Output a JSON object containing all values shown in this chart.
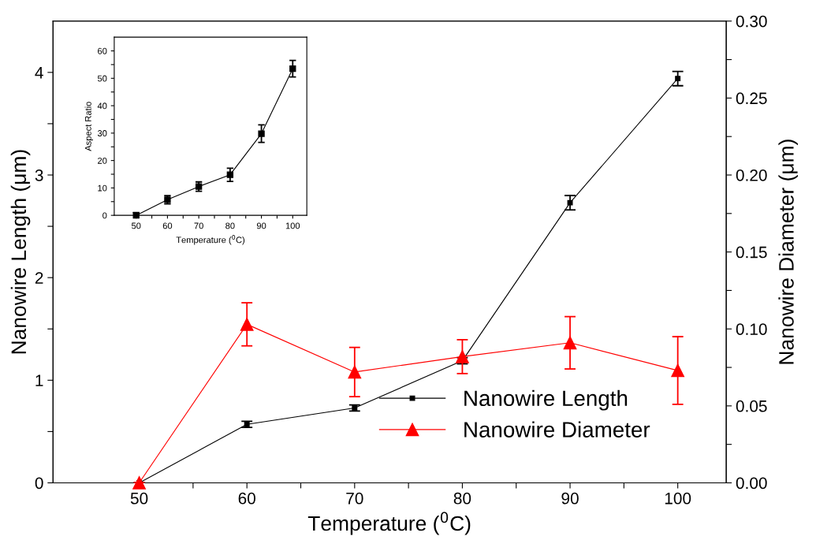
{
  "chart_data": [
    {
      "type": "line",
      "xlabel": "Temperature ($^{0}$C)",
      "ylabel": "Nanowire Length (μm)",
      "y2label": "Nanowire Diameter (μm)",
      "x": [
        50,
        60,
        70,
        80,
        90,
        100
      ],
      "xlim": [
        42,
        104.5
      ],
      "xticks": [
        50,
        {
          "value": 55,
          "label": null
        },
        60,
        {
          "value": 65,
          "label": null
        },
        70,
        {
          "value": 75,
          "label": null
        },
        80,
        {
          "value": 85,
          "label": null
        },
        90,
        {
          "value": 95,
          "label": null
        },
        100
      ],
      "ylim": [
        0,
        4.5
      ],
      "yticks": [
        0,
        {
          "value": 0.5,
          "label": null
        },
        1,
        {
          "value": 1.5,
          "label": null
        },
        2,
        {
          "value": 2.5,
          "label": null
        },
        3,
        {
          "value": 3.5,
          "label": null
        },
        4
      ],
      "y2lim": [
        0,
        0.3
      ],
      "y2ticks": [
        {
          "value": 0,
          "label": "0.00"
        },
        {
          "value": 0.025,
          "label": null
        },
        {
          "value": 0.05,
          "label": "0.05"
        },
        {
          "value": 0.075,
          "label": null
        },
        {
          "value": 0.1,
          "label": "0.10"
        },
        {
          "value": 0.125,
          "label": null
        },
        {
          "value": 0.15,
          "label": "0.15"
        },
        {
          "value": 0.175,
          "label": null
        },
        {
          "value": 0.2,
          "label": "0.20"
        },
        {
          "value": 0.225,
          "label": null
        },
        {
          "value": 0.25,
          "label": "0.25"
        },
        {
          "value": 0.275,
          "label": null
        },
        {
          "value": 0.3,
          "label": "0.30"
        }
      ],
      "legend": "bottom right",
      "grid": false,
      "series": [
        {
          "name": "Nanowire Length",
          "color": "#000000",
          "marker": "square",
          "values": [
            0,
            0.57,
            0.73,
            1.19,
            2.73,
            3.94
          ],
          "errors": [
            null,
            0.03,
            0.03,
            0.03,
            0.07,
            0.07
          ]
        },
        {
          "name": "Nanowire Diameter",
          "color": "#ff0000",
          "marker": "triangle",
          "axis": "y2",
          "values": [
            0,
            0.103,
            0.072,
            0.082,
            0.091,
            0.073
          ],
          "errors": [
            null,
            0.014,
            0.016,
            0.011,
            0.017,
            0.022
          ]
        }
      ]
    },
    {
      "type": "line",
      "xlabel": "Temperature ($^{0}$C)",
      "ylabel": "Aspect Ratio",
      "x": [
        50,
        60,
        70,
        80,
        90,
        100
      ],
      "xlim": [
        43,
        104.5
      ],
      "xticks": [
        50,
        {
          "value": 55,
          "label": null
        },
        60,
        {
          "value": 65,
          "label": null
        },
        70,
        {
          "value": 75,
          "label": null
        },
        80,
        {
          "value": 85,
          "label": null
        },
        90,
        {
          "value": 95,
          "label": null
        },
        100
      ],
      "ylim": [
        0,
        65
      ],
      "yticks": [
        0,
        {
          "value": 5,
          "label": null
        },
        10,
        {
          "value": 15,
          "label": null
        },
        20,
        {
          "value": 25,
          "label": null
        },
        30,
        {
          "value": 35,
          "label": null
        },
        40,
        {
          "value": 45,
          "label": null
        },
        50,
        {
          "value": 55,
          "label": null
        },
        60
      ],
      "grid": false,
      "series": [
        {
          "color": "#000000",
          "marker": "square",
          "values": [
            0,
            5.7,
            10.5,
            14.8,
            29.8,
            53.5
          ],
          "errors": [
            1,
            1.5,
            1.7,
            2.4,
            3.2,
            3.0
          ]
        }
      ]
    }
  ]
}
